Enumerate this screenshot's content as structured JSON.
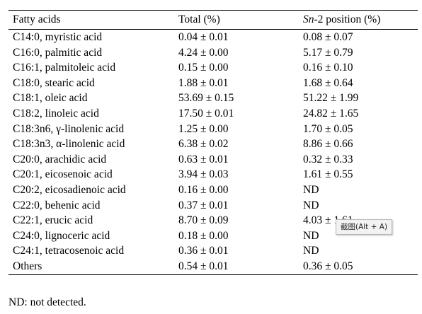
{
  "table": {
    "headers": {
      "fatty_acids": "Fatty acids",
      "total": "Total (%)",
      "sn2_italic": "Sn",
      "sn2_rest": "-2 position (%)"
    },
    "rows": [
      {
        "name": "C14:0, myristic acid",
        "total": "0.04 ± 0.01",
        "sn2": "0.08 ± 0.07"
      },
      {
        "name": "C16:0, palmitic acid",
        "total": "4.24 ± 0.00",
        "sn2": "5.17 ± 0.79"
      },
      {
        "name": "C16:1, palmitoleic acid",
        "total": "0.15 ± 0.00",
        "sn2": "0.16 ± 0.10"
      },
      {
        "name": "C18:0, stearic acid",
        "total": "1.88 ± 0.01",
        "sn2": "1.68 ± 0.64"
      },
      {
        "name": "C18:1, oleic acid",
        "total": "53.69 ± 0.15",
        "sn2": "51.22 ± 1.99"
      },
      {
        "name": "C18:2, linoleic acid",
        "total": "17.50 ± 0.01",
        "sn2": "24.82 ± 1.65"
      },
      {
        "name": "C18:3n6, γ-linolenic acid",
        "total": "1.25 ± 0.00",
        "sn2": "1.70 ± 0.05"
      },
      {
        "name": "C18:3n3, α-linolenic acid",
        "total": "6.38 ± 0.02",
        "sn2": "8.86 ± 0.66"
      },
      {
        "name": "C20:0, arachidic acid",
        "total": "0.63 ± 0.01",
        "sn2": "0.32 ± 0.33"
      },
      {
        "name": "C20:1, eicosenoic acid",
        "total": "3.94 ± 0.03",
        "sn2": "1.61 ± 0.55"
      },
      {
        "name": "C20:2, eicosadienoic acid",
        "total": "0.16 ± 0.00",
        "sn2": "ND"
      },
      {
        "name": "C22:0, behenic acid",
        "total": "0.37 ± 0.01",
        "sn2": "ND"
      },
      {
        "name": "C22:1, erucic acid",
        "total": "8.70 ± 0.09",
        "sn2": "4.03 ± 1.61"
      },
      {
        "name": "C24:0, lignoceric acid",
        "total": "0.18 ± 0.00",
        "sn2": "ND"
      },
      {
        "name": "C24:1, tetracosenoic acid",
        "total": "0.36 ± 0.01",
        "sn2": "ND"
      },
      {
        "name": "Others",
        "total": "0.54 ± 0.01",
        "sn2": "0.36 ± 0.05"
      }
    ]
  },
  "footnote": "ND: not detected.",
  "tooltip": "截图(Alt + A)"
}
